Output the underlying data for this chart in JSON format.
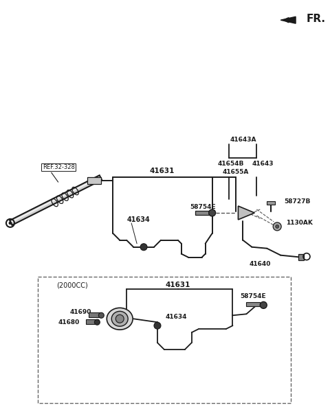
{
  "bg_color": "#ffffff",
  "lc": "#1a1a1a",
  "tc": "#1a1a1a",
  "fr_label": "FR.",
  "ref_label": "REF.32-328",
  "p41631": "41631",
  "p41634": "41634",
  "p41643A": "41643A",
  "p41654B": "41654B",
  "p41643": "41643",
  "p41655A": "41655A",
  "p58754E": "58754E",
  "p58727B": "58727B",
  "p1130AK": "1130AK",
  "p41640": "41640",
  "p2000cc": "(2000CC)",
  "p41631b": "41631",
  "p41690": "41690",
  "p41680": "41680",
  "p41634b": "41634",
  "p58754Eb": "58754E"
}
